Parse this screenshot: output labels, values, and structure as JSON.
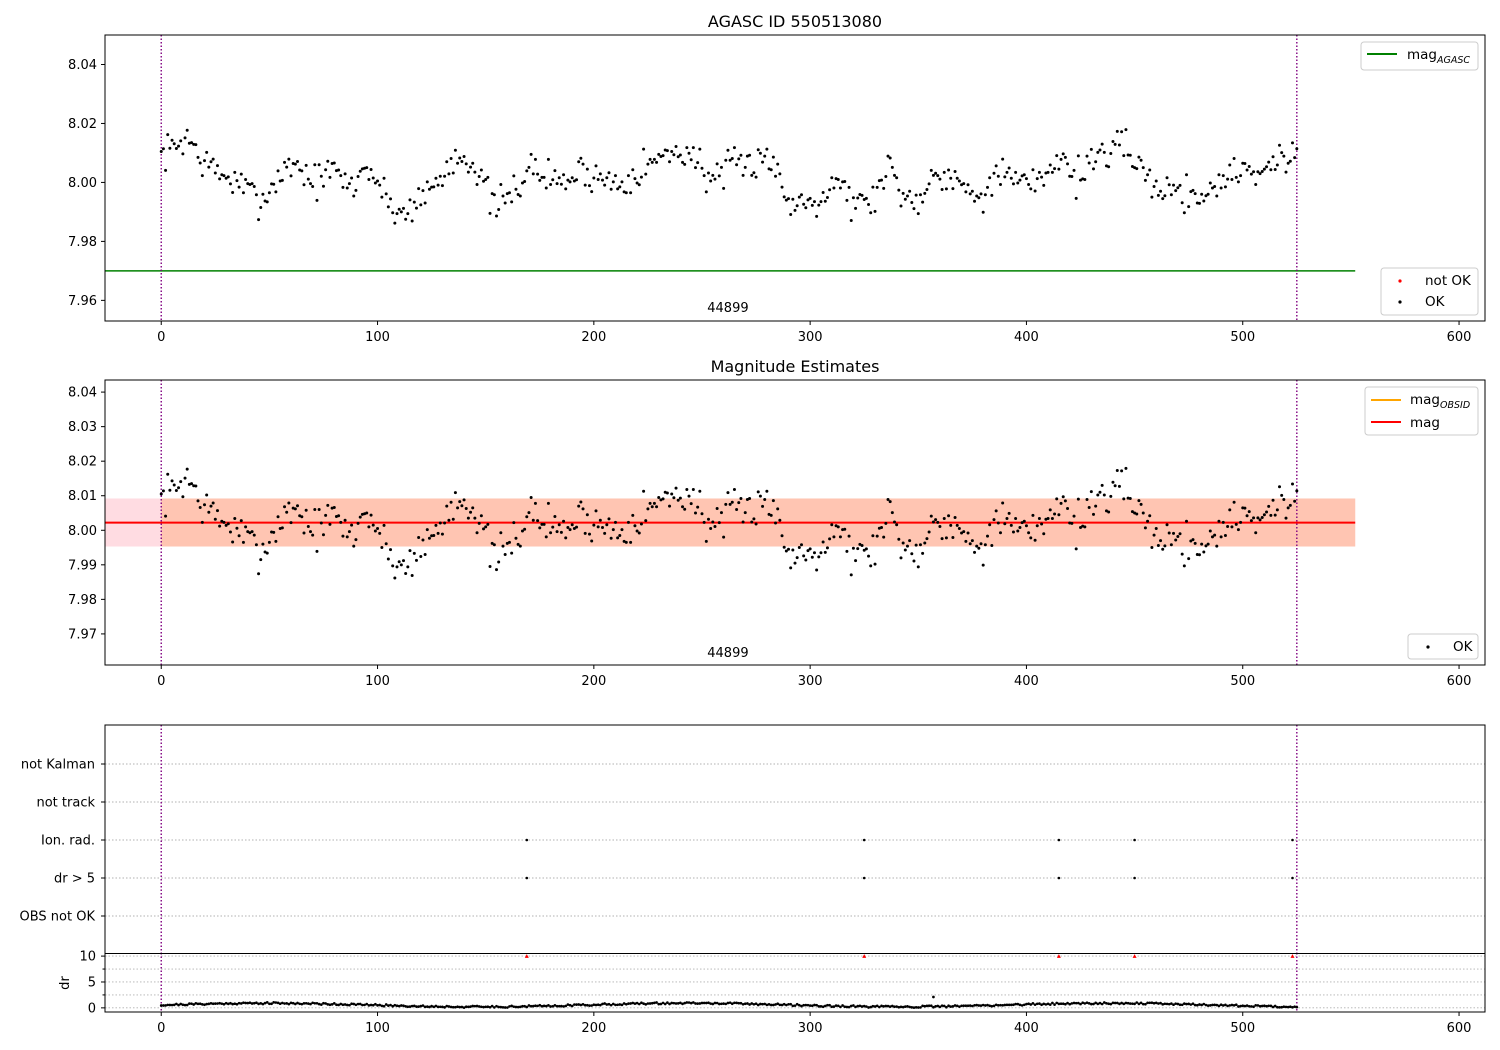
{
  "chart_data": [
    {
      "id": "agasc",
      "type": "scatter",
      "title": "AGASC ID 550513080",
      "xlim": [
        -26,
        612
      ],
      "ylim": [
        7.953,
        8.05
      ],
      "xticks": [
        0,
        100,
        200,
        300,
        400,
        500,
        600
      ],
      "yticks": [
        7.96,
        7.98,
        8.0,
        8.02,
        8.04
      ],
      "ytick_labels": [
        "7.96",
        "7.98",
        "8.00",
        "8.02",
        "8.04"
      ],
      "obsid_label": "44899",
      "obsid_label_x": 262,
      "vlines": [
        0,
        525
      ],
      "hline": {
        "name": "mag",
        "sub": "AGASC",
        "y": 7.97,
        "x_range": [
          -26,
          552
        ],
        "color": "#008000"
      },
      "legend_lines": [
        {
          "name": "mag",
          "sub": "AGASC",
          "color": "#008000"
        }
      ],
      "legend_markers": [
        {
          "name": "not OK",
          "color": "#ff0000"
        },
        {
          "name": "OK",
          "color": "#000000"
        }
      ],
      "series": [
        {
          "name": "OK",
          "color": "#000000",
          "source": "mag_points"
        }
      ],
      "grid": false
    },
    {
      "id": "mag",
      "type": "scatter",
      "title": "Magnitude Estimates",
      "xlim": [
        -26,
        612
      ],
      "ylim": [
        7.961,
        8.0435
      ],
      "xticks": [
        0,
        100,
        200,
        300,
        400,
        500,
        600
      ],
      "yticks": [
        7.97,
        7.98,
        7.99,
        8.0,
        8.01,
        8.02,
        8.03,
        8.04
      ],
      "ytick_labels": [
        "7.97",
        "7.98",
        "7.99",
        "8.00",
        "8.01",
        "8.02",
        "8.03",
        "8.04"
      ],
      "obsid_label": "44899",
      "obsid_label_x": 262,
      "vlines": [
        0,
        525
      ],
      "mag_line": {
        "name": "mag",
        "y": 8.0022,
        "x_range": [
          -26,
          552
        ],
        "color": "#ff0000"
      },
      "band_outer": {
        "y": [
          7.9953,
          8.0092
        ],
        "x_range": [
          -26,
          552
        ],
        "color": "#ffc0cb"
      },
      "band_inner": {
        "y": [
          7.9953,
          8.0092
        ],
        "x_range": [
          0,
          552
        ],
        "color": "#ffb38a"
      },
      "obsid_line": {
        "name": "mag",
        "sub": "OBSID",
        "color": "#ffa500"
      },
      "legend_lines": [
        {
          "name": "mag",
          "sub": "OBSID",
          "color": "#ffa500"
        },
        {
          "name": "mag",
          "sub": "",
          "color": "#ff0000"
        }
      ],
      "legend_markers": [
        {
          "name": "OK",
          "color": "#000000"
        }
      ],
      "series": [
        {
          "name": "OK",
          "color": "#000000",
          "source": "mag_points"
        }
      ],
      "grid": false
    },
    {
      "id": "flags",
      "type": "scatter",
      "xlim": [
        -26,
        612
      ],
      "categories": [
        "not Kalman",
        "not track",
        "Ion. rad.",
        "dr > 5",
        "OBS not OK"
      ],
      "flag_points": {
        "Ion. rad.": [
          169,
          325,
          415,
          450,
          523
        ],
        "dr > 5": [
          169,
          325,
          415,
          450,
          523
        ]
      },
      "vlines": [
        0,
        525
      ],
      "grid": true
    },
    {
      "id": "dr",
      "type": "scatter",
      "ylabel": "dr",
      "xlim": [
        -26,
        612
      ],
      "ylim": [
        -0.8,
        10.6
      ],
      "yticks": [
        0,
        5,
        10
      ],
      "ytick_labels": [
        "0",
        "5",
        "10"
      ],
      "xticks": [
        0,
        100,
        200,
        300,
        400,
        500,
        600
      ],
      "clipped_markers": {
        "x": [
          169,
          325,
          415,
          450,
          523
        ],
        "y": 10,
        "color": "#ff0000"
      },
      "outlier": {
        "x": 357,
        "y": 2.1
      },
      "vlines": [
        0,
        525
      ],
      "grid": true
    }
  ]
}
